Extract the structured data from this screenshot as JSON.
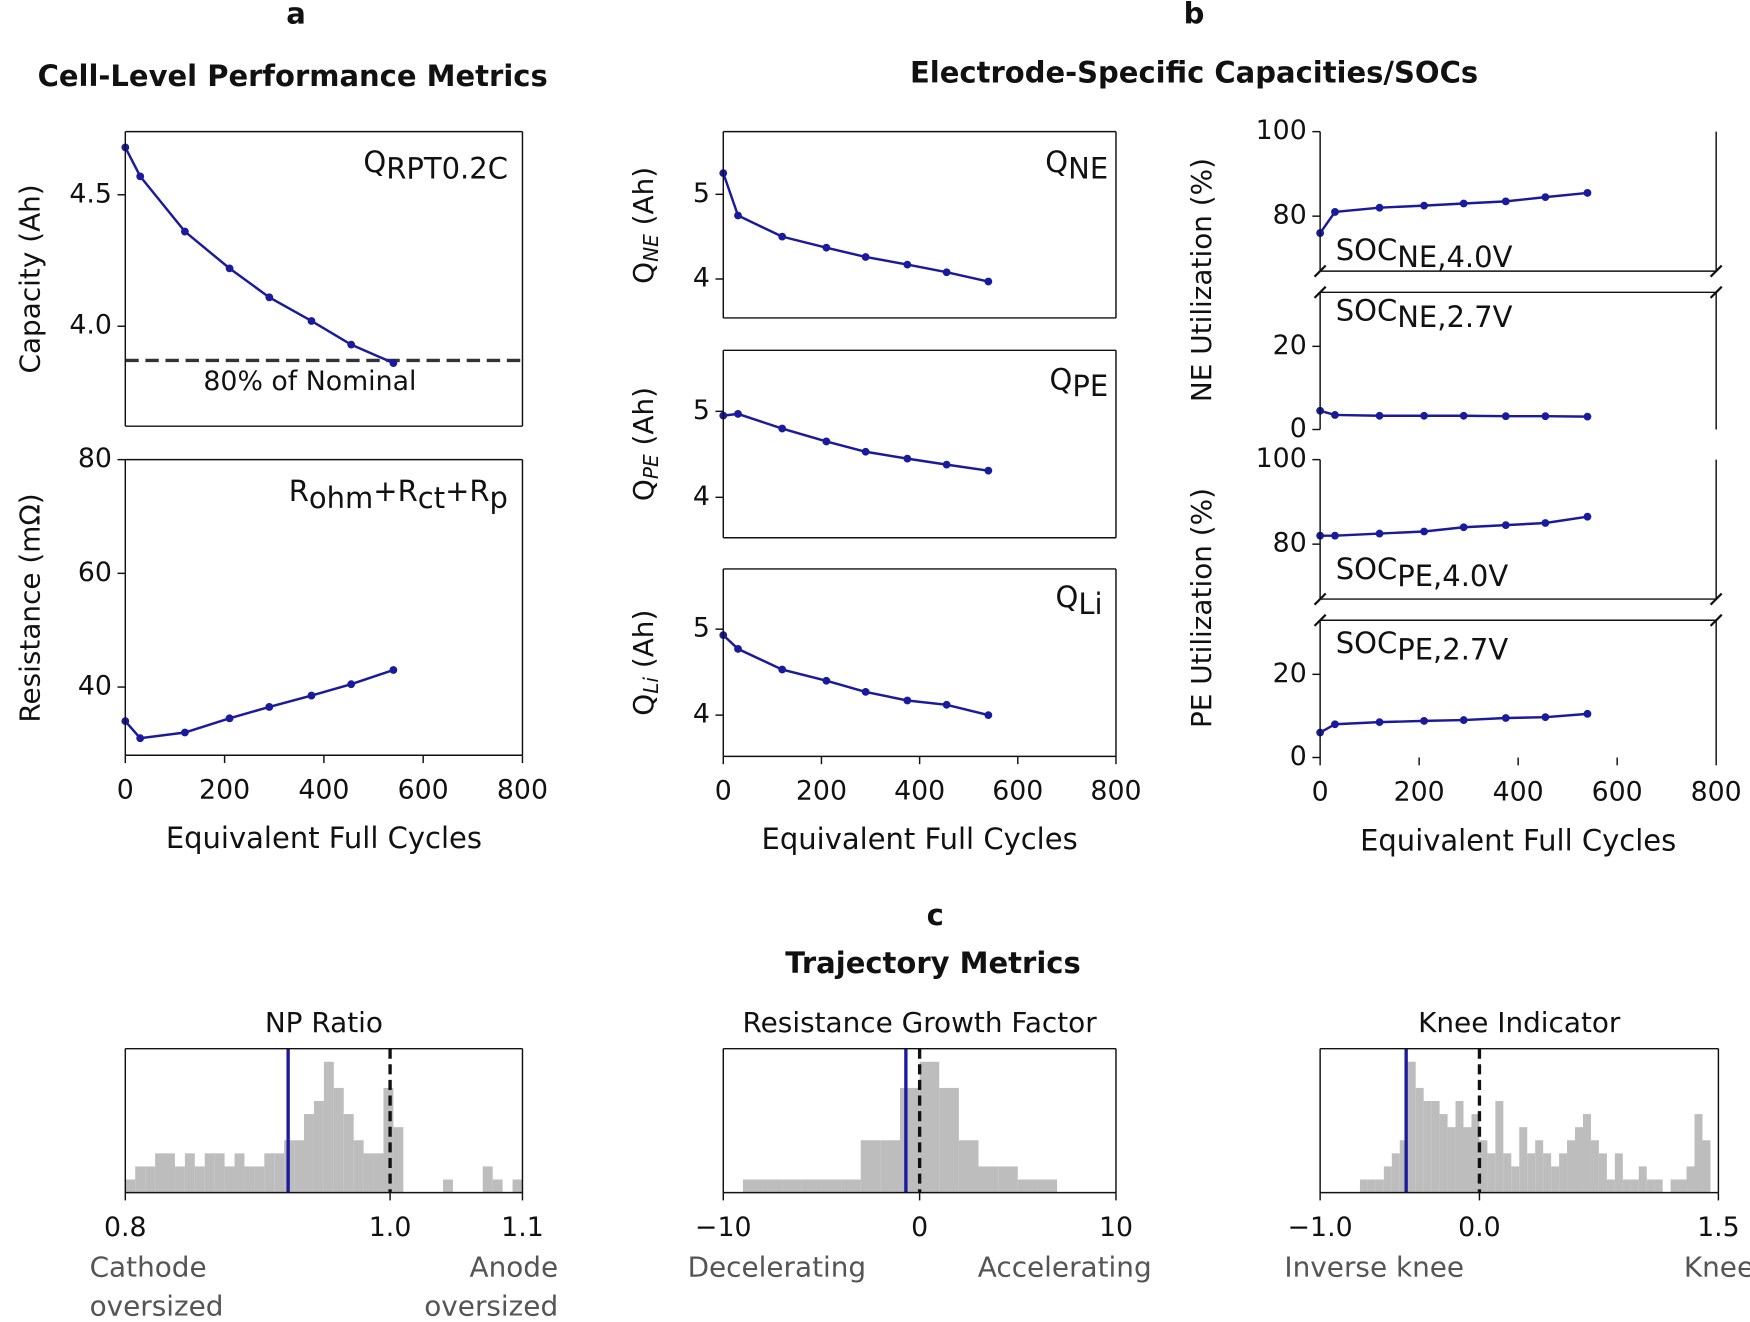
{
  "panel_letters": [
    "a",
    "b",
    "c"
  ],
  "section_titles": [
    "Cell-Level Performance Metrics",
    "Electrode-Specific Capacities/SOCs",
    "Trajectory Metrics"
  ],
  "chart_data": [
    {
      "type": "line",
      "annotation": {
        "main": "Q",
        "sub": "RPT0.2C"
      },
      "ylabel": {
        "main": "Capacity (Ah)"
      },
      "x": [
        0,
        30,
        120,
        210,
        290,
        375,
        455,
        540
      ],
      "values": [
        4.68,
        4.57,
        4.36,
        4.22,
        4.11,
        4.02,
        3.93,
        3.86
      ],
      "color": "#1a1a9c",
      "xlim": [
        0,
        800
      ],
      "ylim": [
        3.62,
        4.74
      ],
      "yticks": [
        {
          "value": 4.0,
          "label": "4.0"
        },
        4.5
      ],
      "hline": {
        "value": 3.87,
        "label": "80% of Nominal",
        "color": "#333333"
      }
    },
    {
      "type": "line",
      "annotation": {
        "main": "R",
        "sub": "ohm",
        "main2": "+R",
        "sub2": "ct",
        "main3": "+R",
        "sub3": "p"
      },
      "ylabel": {
        "main": "Resistance (mΩ)"
      },
      "x": [
        0,
        30,
        120,
        210,
        290,
        375,
        455,
        540
      ],
      "values": [
        34,
        31,
        32,
        34.5,
        36.5,
        38.5,
        40.5,
        43
      ],
      "color": "#1a1a9c",
      "xlim": [
        0,
        800
      ],
      "ylim": [
        28,
        80
      ],
      "yticks": [
        40,
        60,
        80
      ],
      "xticks": [
        0,
        200,
        400,
        600,
        800
      ],
      "xlabel": "Equivalent Full Cycles"
    },
    {
      "type": "line",
      "annotation": {
        "main": "Q",
        "sub": "NE"
      },
      "ylabel": {
        "main": "Q",
        "sub": "NE",
        "rest": " (Ah)"
      },
      "x": [
        0,
        30,
        120,
        210,
        290,
        375,
        455,
        540
      ],
      "values": [
        5.25,
        4.75,
        4.5,
        4.37,
        4.26,
        4.17,
        4.08,
        3.97
      ],
      "color": "#1a1a9c",
      "xlim": [
        0,
        800
      ],
      "ylim": [
        3.54,
        5.74
      ],
      "yticks": [
        4,
        5
      ]
    },
    {
      "type": "line",
      "annotation": {
        "main": "Q",
        "sub": "PE"
      },
      "ylabel": {
        "main": "Q",
        "sub": "PE",
        "rest": " (Ah)"
      },
      "x": [
        0,
        30,
        120,
        210,
        290,
        375,
        455,
        540
      ],
      "values": [
        4.95,
        4.97,
        4.8,
        4.65,
        4.53,
        4.45,
        4.38,
        4.31
      ],
      "color": "#1a1a9c",
      "xlim": [
        0,
        800
      ],
      "ylim": [
        3.53,
        5.71
      ],
      "yticks": [
        4,
        5
      ]
    },
    {
      "type": "line",
      "annotation": {
        "main": "Q",
        "sub": "Li"
      },
      "ylabel": {
        "main": "Q",
        "sub": "Li",
        "rest": " (Ah)"
      },
      "x": [
        0,
        30,
        120,
        210,
        290,
        375,
        455,
        540
      ],
      "values": [
        4.93,
        4.77,
        4.53,
        4.4,
        4.27,
        4.17,
        4.12,
        4.0
      ],
      "color": "#1a1a9c",
      "xlim": [
        0,
        800
      ],
      "ylim": [
        3.52,
        5.7
      ],
      "yticks": [
        4,
        5
      ],
      "xticks": [
        0,
        200,
        400,
        600,
        800
      ],
      "xlabel": "Equivalent Full Cycles"
    },
    {
      "type": "line",
      "annotation": {
        "main": "SOC",
        "sub": "NE,4.0V"
      },
      "ylabel": {
        "main": "NE Utilization (%)"
      },
      "x": [
        0,
        30,
        120,
        210,
        290,
        375,
        455,
        540
      ],
      "values": [
        76,
        81,
        82,
        82.5,
        83,
        83.5,
        84.5,
        85.5
      ],
      "color": "#1a1a9c",
      "xlim": [
        0,
        800
      ],
      "ylim": [
        67,
        100
      ],
      "yticks": [
        80,
        100
      ]
    },
    {
      "type": "line",
      "annotation": {
        "main": "SOC",
        "sub": "NE,2.7V"
      },
      "x": [
        0,
        30,
        120,
        210,
        290,
        375,
        455,
        540
      ],
      "values": [
        4.5,
        3.5,
        3.3,
        3.3,
        3.3,
        3.2,
        3.2,
        3.1
      ],
      "color": "#1a1a9c",
      "xlim": [
        0,
        800
      ],
      "ylim": [
        0,
        33
      ],
      "yticks": [
        0,
        20
      ]
    },
    {
      "type": "line",
      "annotation": {
        "main": "SOC",
        "sub": "PE,4.0V"
      },
      "ylabel": {
        "main": "PE Utilization (%)"
      },
      "x": [
        0,
        30,
        120,
        210,
        290,
        375,
        455,
        540
      ],
      "values": [
        82,
        82,
        82.5,
        83,
        84,
        84.5,
        85,
        86.5
      ],
      "color": "#1a1a9c",
      "xlim": [
        0,
        800
      ],
      "ylim": [
        67,
        100
      ],
      "yticks": [
        80,
        100
      ]
    },
    {
      "type": "line",
      "annotation": {
        "main": "SOC",
        "sub": "PE,2.7V"
      },
      "x": [
        0,
        30,
        120,
        210,
        290,
        375,
        455,
        540
      ],
      "values": [
        6,
        8,
        8.5,
        8.8,
        9,
        9.5,
        9.7,
        10.5
      ],
      "color": "#1a1a9c",
      "xlim": [
        0,
        800
      ],
      "ylim": [
        0,
        33
      ],
      "yticks": [
        0,
        20
      ],
      "xticks": [
        0,
        200,
        400,
        600,
        800
      ],
      "xlabel": "Equivalent Full Cycles"
    },
    {
      "type": "histogram",
      "title": "NP Ratio",
      "color": "#bdbdbd",
      "bins": [
        0.8,
        0.8075,
        0.815,
        0.8225,
        0.83,
        0.8375,
        0.845,
        0.8525,
        0.86,
        0.8675,
        0.875,
        0.8825,
        0.89,
        0.8975,
        0.905,
        0.9125,
        0.92,
        0.9275,
        0.935,
        0.9425,
        0.95,
        0.9575,
        0.965,
        0.9725,
        0.98,
        0.9875,
        0.995,
        1.0025,
        1.01,
        1.0175,
        1.025,
        1.0325,
        1.04,
        1.0475,
        1.055,
        1.0625,
        1.07,
        1.0775,
        1.085,
        1.0925,
        1.1
      ],
      "counts": [
        1,
        2,
        2,
        3,
        3,
        2,
        3,
        2,
        3,
        3,
        2,
        3,
        2,
        2,
        3,
        3,
        4,
        4,
        6,
        7,
        10,
        8,
        6,
        4,
        3,
        3,
        8,
        5,
        0,
        0,
        0,
        0,
        1,
        0,
        0,
        0,
        2,
        1,
        0,
        1
      ],
      "xlim": [
        0.8,
        1.1
      ],
      "ylim": [
        0,
        11
      ],
      "xticks": [
        0.8,
        {
          "value": 1.0,
          "label": "1.0"
        },
        1.1
      ],
      "vlines": [
        {
          "value": 0.923,
          "color": "#1a1a9c",
          "dashed": false
        },
        {
          "value": 1.0,
          "color": "#111111",
          "dashed": true
        }
      ],
      "notes": [
        [
          "Cathode",
          "oversized"
        ],
        [
          "Anode",
          "oversized"
        ]
      ]
    },
    {
      "type": "histogram",
      "title": "Resistance Growth Factor",
      "color": "#bdbdbd",
      "bins": [
        -9,
        -8,
        -7,
        -6,
        -5,
        -4,
        -3,
        -2,
        -1,
        0,
        1,
        2,
        3,
        4,
        5,
        6,
        7
      ],
      "counts": [
        1,
        1,
        1,
        1,
        1,
        1,
        4,
        4,
        8,
        10,
        8,
        4,
        2,
        2,
        1,
        1
      ],
      "xlim": [
        -10,
        10
      ],
      "ylim": [
        0,
        11
      ],
      "xticks": [
        {
          "value": -10,
          "label": "−10"
        },
        0,
        10
      ],
      "vlines": [
        {
          "value": -0.7,
          "color": "#1a1a9c",
          "dashed": false
        },
        {
          "value": 0,
          "color": "#111111",
          "dashed": true
        }
      ],
      "notes": [
        [
          "Decelerating"
        ],
        [
          "Accelerating"
        ]
      ]
    },
    {
      "type": "histogram",
      "title": "Knee Indicator",
      "color": "#bdbdbd",
      "bins": [
        -0.75,
        -0.7,
        -0.65,
        -0.6,
        -0.55,
        -0.5,
        -0.45,
        -0.4,
        -0.35,
        -0.3,
        -0.25,
        -0.2,
        -0.15,
        -0.1,
        -0.05,
        0,
        0.05,
        0.1,
        0.15,
        0.2,
        0.25,
        0.3,
        0.35,
        0.4,
        0.45,
        0.5,
        0.55,
        0.6,
        0.65,
        0.7,
        0.75,
        0.8,
        0.85,
        0.9,
        0.95,
        1.0,
        1.05,
        1.1,
        1.15,
        1.2,
        1.25,
        1.3,
        1.35,
        1.4,
        1.45
      ],
      "counts": [
        1,
        1,
        1,
        2,
        3,
        4,
        10,
        8,
        7,
        7,
        6,
        5,
        7,
        5,
        6,
        4,
        3,
        7,
        3,
        2,
        5,
        3,
        4,
        3,
        2,
        3,
        4,
        5,
        6,
        4,
        3,
        1,
        3,
        1,
        1,
        2,
        1,
        1,
        0,
        1,
        1,
        2,
        6,
        4
      ],
      "xlim": [
        -1,
        1.5
      ],
      "ylim": [
        0,
        11
      ],
      "xticks": [
        {
          "value": -1,
          "label": "−1.0"
        },
        {
          "value": 0,
          "label": "0.0"
        },
        1.5
      ],
      "vlines": [
        {
          "value": -0.46,
          "color": "#1a1a9c",
          "dashed": false
        },
        {
          "value": 0,
          "color": "#111111",
          "dashed": true
        }
      ],
      "notes": [
        [
          "Inverse knee"
        ],
        [
          "Knee"
        ]
      ]
    }
  ]
}
